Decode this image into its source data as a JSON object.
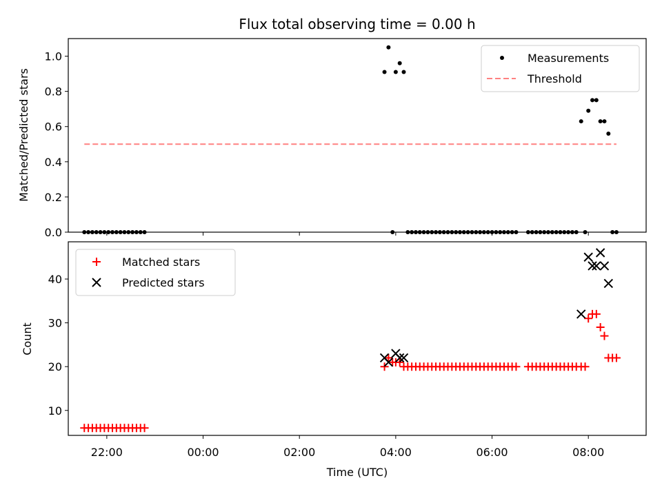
{
  "chart_data": [
    {
      "type": "scatter",
      "title": "Flux total observing time = 0.00 h",
      "xlabel": "",
      "ylabel": "Matched/Predicted stars",
      "xlim": [
        "21:12",
        "09:12"
      ],
      "ylim": [
        0.0,
        1.1
      ],
      "yticks": [
        "0.0",
        "0.2",
        "0.4",
        "0.6",
        "0.8",
        "1.0"
      ],
      "grid": false,
      "legend": "top-right",
      "series": [
        {
          "name": "Measurements",
          "style": "dot",
          "color": "#000000",
          "points": [
            [
              "21:32",
              0.0
            ],
            [
              "21:37",
              0.0
            ],
            [
              "21:42",
              0.0
            ],
            [
              "21:47",
              0.0
            ],
            [
              "21:52",
              0.0
            ],
            [
              "21:57",
              0.0
            ],
            [
              "22:02",
              0.0
            ],
            [
              "22:07",
              0.0
            ],
            [
              "22:12",
              0.0
            ],
            [
              "22:17",
              0.0
            ],
            [
              "22:22",
              0.0
            ],
            [
              "22:27",
              0.0
            ],
            [
              "22:32",
              0.0
            ],
            [
              "22:37",
              0.0
            ],
            [
              "22:42",
              0.0
            ],
            [
              "22:47",
              0.0
            ],
            [
              "03:46",
              0.91
            ],
            [
              "03:51",
              1.05
            ],
            [
              "03:56",
              0.0
            ],
            [
              "04:00",
              0.91
            ],
            [
              "04:05",
              0.96
            ],
            [
              "04:10",
              0.91
            ],
            [
              "04:15",
              0.0
            ],
            [
              "04:20",
              0.0
            ],
            [
              "04:25",
              0.0
            ],
            [
              "04:30",
              0.0
            ],
            [
              "04:35",
              0.0
            ],
            [
              "04:40",
              0.0
            ],
            [
              "04:45",
              0.0
            ],
            [
              "04:50",
              0.0
            ],
            [
              "04:55",
              0.0
            ],
            [
              "05:00",
              0.0
            ],
            [
              "05:05",
              0.0
            ],
            [
              "05:10",
              0.0
            ],
            [
              "05:15",
              0.0
            ],
            [
              "05:20",
              0.0
            ],
            [
              "05:25",
              0.0
            ],
            [
              "05:30",
              0.0
            ],
            [
              "05:35",
              0.0
            ],
            [
              "05:40",
              0.0
            ],
            [
              "05:45",
              0.0
            ],
            [
              "05:50",
              0.0
            ],
            [
              "05:55",
              0.0
            ],
            [
              "06:00",
              0.0
            ],
            [
              "06:05",
              0.0
            ],
            [
              "06:10",
              0.0
            ],
            [
              "06:15",
              0.0
            ],
            [
              "06:20",
              0.0
            ],
            [
              "06:25",
              0.0
            ],
            [
              "06:30",
              0.0
            ],
            [
              "06:45",
              0.0
            ],
            [
              "06:50",
              0.0
            ],
            [
              "06:55",
              0.0
            ],
            [
              "07:00",
              0.0
            ],
            [
              "07:05",
              0.0
            ],
            [
              "07:10",
              0.0
            ],
            [
              "07:15",
              0.0
            ],
            [
              "07:20",
              0.0
            ],
            [
              "07:25",
              0.0
            ],
            [
              "07:30",
              0.0
            ],
            [
              "07:35",
              0.0
            ],
            [
              "07:40",
              0.0
            ],
            [
              "07:45",
              0.0
            ],
            [
              "07:51",
              0.63
            ],
            [
              "07:56",
              0.0
            ],
            [
              "08:00",
              0.69
            ],
            [
              "08:05",
              0.75
            ],
            [
              "08:10",
              0.75
            ],
            [
              "08:15",
              0.63
            ],
            [
              "08:20",
              0.63
            ],
            [
              "08:25",
              0.56
            ],
            [
              "08:30",
              0.0
            ],
            [
              "08:35",
              0.0
            ]
          ]
        },
        {
          "name": "Threshold",
          "style": "dashed-line",
          "color": "#ff8080",
          "points": [
            [
              "21:32",
              0.5
            ],
            [
              "08:35",
              0.5
            ]
          ]
        }
      ]
    },
    {
      "type": "scatter",
      "title": "",
      "xlabel": "Time (UTC)",
      "ylabel": "Count",
      "xlim": [
        "21:12",
        "09:12"
      ],
      "ylim": [
        4.3,
        48.5
      ],
      "xticks": [
        "22:00",
        "00:00",
        "02:00",
        "04:00",
        "06:00",
        "08:00"
      ],
      "yticks": [
        "10",
        "20",
        "30",
        "40"
      ],
      "grid": false,
      "legend": "top-left",
      "series": [
        {
          "name": "Matched stars",
          "marker": "+",
          "color": "#ff0000",
          "points": [
            [
              "21:32",
              6
            ],
            [
              "21:37",
              6
            ],
            [
              "21:42",
              6
            ],
            [
              "21:47",
              6
            ],
            [
              "21:52",
              6
            ],
            [
              "21:57",
              6
            ],
            [
              "22:02",
              6
            ],
            [
              "22:07",
              6
            ],
            [
              "22:12",
              6
            ],
            [
              "22:17",
              6
            ],
            [
              "22:22",
              6
            ],
            [
              "22:27",
              6
            ],
            [
              "22:32",
              6
            ],
            [
              "22:37",
              6
            ],
            [
              "22:42",
              6
            ],
            [
              "22:47",
              6
            ],
            [
              "03:46",
              20
            ],
            [
              "03:51",
              22
            ],
            [
              "03:56",
              21
            ],
            [
              "04:00",
              21
            ],
            [
              "04:05",
              21
            ],
            [
              "04:10",
              20
            ],
            [
              "04:15",
              20
            ],
            [
              "04:20",
              20
            ],
            [
              "04:25",
              20
            ],
            [
              "04:30",
              20
            ],
            [
              "04:35",
              20
            ],
            [
              "04:40",
              20
            ],
            [
              "04:45",
              20
            ],
            [
              "04:50",
              20
            ],
            [
              "04:55",
              20
            ],
            [
              "05:00",
              20
            ],
            [
              "05:05",
              20
            ],
            [
              "05:10",
              20
            ],
            [
              "05:15",
              20
            ],
            [
              "05:20",
              20
            ],
            [
              "05:25",
              20
            ],
            [
              "05:30",
              20
            ],
            [
              "05:35",
              20
            ],
            [
              "05:40",
              20
            ],
            [
              "05:45",
              20
            ],
            [
              "05:50",
              20
            ],
            [
              "05:55",
              20
            ],
            [
              "06:00",
              20
            ],
            [
              "06:05",
              20
            ],
            [
              "06:10",
              20
            ],
            [
              "06:15",
              20
            ],
            [
              "06:20",
              20
            ],
            [
              "06:25",
              20
            ],
            [
              "06:30",
              20
            ],
            [
              "06:45",
              20
            ],
            [
              "06:50",
              20
            ],
            [
              "06:55",
              20
            ],
            [
              "07:00",
              20
            ],
            [
              "07:05",
              20
            ],
            [
              "07:10",
              20
            ],
            [
              "07:15",
              20
            ],
            [
              "07:20",
              20
            ],
            [
              "07:25",
              20
            ],
            [
              "07:30",
              20
            ],
            [
              "07:35",
              20
            ],
            [
              "07:40",
              20
            ],
            [
              "07:45",
              20
            ],
            [
              "07:51",
              20
            ],
            [
              "07:56",
              20
            ],
            [
              "08:00",
              31
            ],
            [
              "08:05",
              32
            ],
            [
              "08:10",
              32
            ],
            [
              "08:15",
              29
            ],
            [
              "08:20",
              27
            ],
            [
              "08:25",
              22
            ],
            [
              "08:30",
              22
            ],
            [
              "08:35",
              22
            ]
          ]
        },
        {
          "name": "Predicted stars",
          "marker": "x",
          "color": "#000000",
          "points": [
            [
              "03:46",
              22
            ],
            [
              "03:51",
              21
            ],
            [
              "04:00",
              23
            ],
            [
              "04:05",
              22
            ],
            [
              "04:10",
              22
            ],
            [
              "07:51",
              32
            ],
            [
              "08:00",
              45
            ],
            [
              "08:05",
              43
            ],
            [
              "08:10",
              43
            ],
            [
              "08:15",
              46
            ],
            [
              "08:20",
              43
            ],
            [
              "08:25",
              39
            ]
          ]
        }
      ]
    }
  ]
}
